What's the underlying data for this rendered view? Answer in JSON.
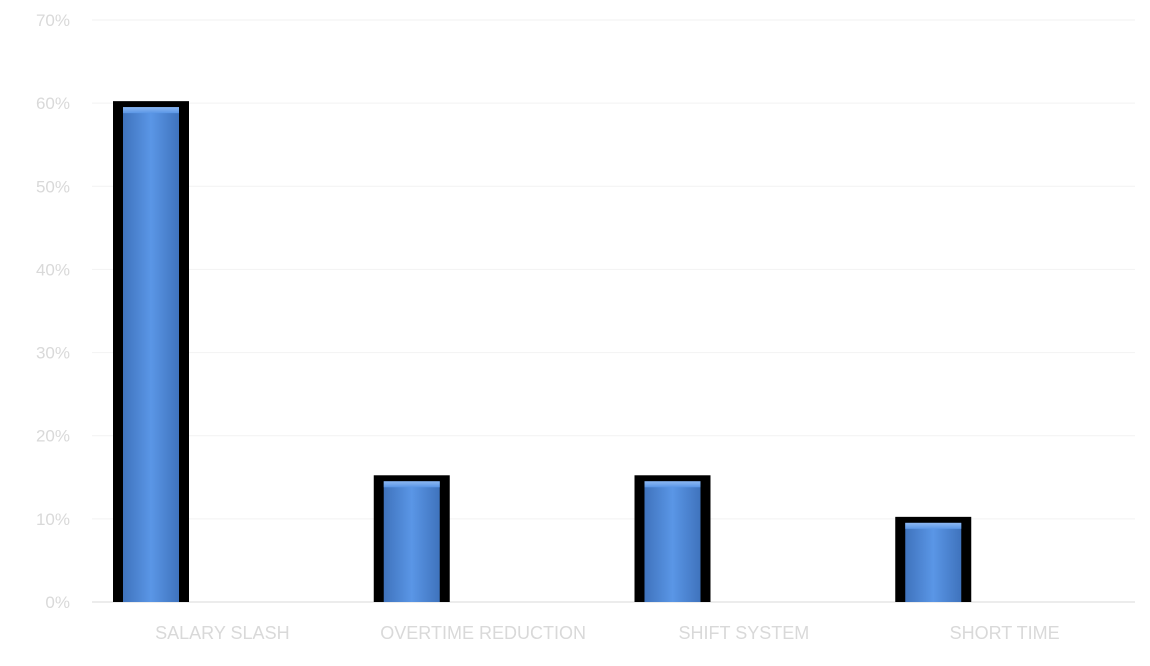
{
  "chart_data": {
    "type": "bar",
    "categories": [
      "SALARY SLASH",
      "OVERTIME REDUCTION",
      "SHIFT SYSTEM",
      "SHORT TIME"
    ],
    "series": [
      {
        "values": [
          60,
          15,
          15,
          10
        ]
      }
    ],
    "ylim": [
      0,
      70
    ],
    "y_ticks": [
      "0%",
      "10%",
      "20%",
      "30%",
      "40%",
      "50%",
      "60%",
      "70%"
    ],
    "grid": true,
    "legend": "none",
    "colors": {
      "bar": "#4a86d8",
      "bar_outline": "#000000",
      "tick_text": "#d9d9d9",
      "grid": "#f2f2f2"
    }
  }
}
